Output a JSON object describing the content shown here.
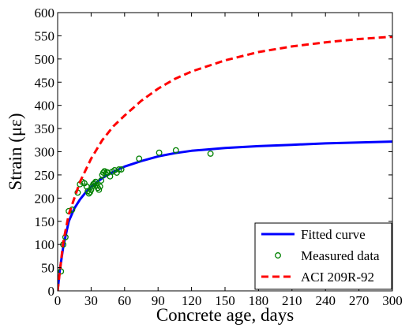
{
  "chart_data": {
    "type": "line",
    "xlabel": "Concrete age, days",
    "ylabel": "Strain (με)",
    "xlim": [
      0,
      300
    ],
    "ylim": [
      0,
      600
    ],
    "xticks": [
      0,
      30,
      60,
      90,
      120,
      150,
      180,
      210,
      240,
      270,
      300
    ],
    "yticks": [
      0,
      50,
      100,
      150,
      200,
      250,
      300,
      350,
      400,
      450,
      500,
      550,
      600
    ],
    "grid": false,
    "legend_position": "bottom-right",
    "series": [
      {
        "name": "Fitted curve",
        "kind": "line",
        "style": "solid",
        "color": "#0000ff",
        "x": [
          0,
          2,
          5,
          10,
          15,
          20,
          25,
          30,
          40,
          50,
          60,
          75,
          90,
          105,
          120,
          150,
          180,
          210,
          240,
          270,
          300
        ],
        "y": [
          0,
          45,
          95,
          150,
          178,
          197,
          212,
          224,
          243,
          257,
          268,
          280,
          290,
          297,
          302,
          308,
          312,
          315,
          318,
          320,
          322
        ]
      },
      {
        "name": "Measured data",
        "kind": "scatter",
        "color": "#008000",
        "x": [
          3,
          5,
          7,
          10,
          13,
          18,
          20,
          22,
          24,
          26,
          27,
          28,
          29,
          30,
          31,
          32,
          33,
          34,
          35,
          36,
          37,
          38,
          39,
          40,
          41,
          42,
          43,
          44,
          45,
          47,
          49,
          51,
          53,
          55,
          57,
          73,
          91,
          106,
          137
        ],
        "y": [
          42,
          100,
          116,
          172,
          175,
          212,
          230,
          235,
          232,
          225,
          215,
          210,
          213,
          218,
          225,
          230,
          232,
          235,
          228,
          222,
          218,
          225,
          238,
          250,
          255,
          258,
          252,
          256,
          255,
          247,
          257,
          260,
          255,
          262,
          262,
          285,
          298,
          303,
          296
        ]
      },
      {
        "name": "ACI 209R-92",
        "kind": "line",
        "style": "dashed",
        "color": "#ff0000",
        "x": [
          0,
          5,
          10,
          20,
          30,
          40,
          50,
          60,
          75,
          90,
          105,
          120,
          150,
          180,
          210,
          240,
          270,
          300
        ],
        "y": [
          0,
          105,
          165,
          235,
          285,
          325,
          355,
          378,
          410,
          436,
          457,
          473,
          497,
          515,
          527,
          536,
          543,
          548
        ]
      }
    ]
  }
}
